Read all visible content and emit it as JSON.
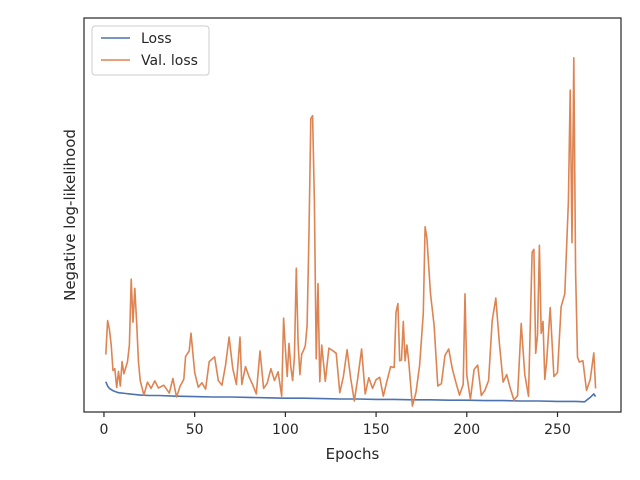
{
  "chart_data": {
    "type": "line",
    "xlabel": "Epochs",
    "ylabel": "Negative log-likelihood",
    "xlim": [
      -11,
      285
    ],
    "ylim": [
      0,
      100
    ],
    "xticks": [
      0,
      50,
      100,
      150,
      200,
      250
    ],
    "xtick_labels": [
      "0",
      "50",
      "100",
      "150",
      "200",
      "250"
    ],
    "yticks_visible": false,
    "grid": false,
    "legend_position": "top-left",
    "colors": {
      "loss": "#4c72b0",
      "val_loss": "#dd8452",
      "axes": "#262626"
    },
    "series": [
      {
        "name": "Loss",
        "key": "loss",
        "x": [
          1,
          2,
          3,
          5,
          8,
          12,
          16,
          20,
          25,
          30,
          40,
          50,
          60,
          70,
          80,
          90,
          100,
          110,
          120,
          130,
          140,
          150,
          160,
          170,
          180,
          190,
          200,
          210,
          220,
          230,
          240,
          250,
          260,
          265,
          268,
          270,
          271
        ],
        "y": [
          7.7,
          6.6,
          6.0,
          5.4,
          4.9,
          4.7,
          4.5,
          4.3,
          4.2,
          4.2,
          4.0,
          3.9,
          3.8,
          3.8,
          3.7,
          3.6,
          3.5,
          3.5,
          3.4,
          3.3,
          3.3,
          3.2,
          3.2,
          3.1,
          3.1,
          3.0,
          3.0,
          2.9,
          2.9,
          2.8,
          2.8,
          2.7,
          2.7,
          2.6,
          3.7,
          4.6,
          3.9
        ]
      },
      {
        "name": "Val. loss",
        "key": "val_loss",
        "x": [
          1,
          2,
          3,
          4,
          5,
          6,
          7,
          8,
          9,
          10,
          11,
          12,
          13,
          14,
          15,
          16,
          17,
          18,
          19,
          20,
          22,
          24,
          26,
          28,
          30,
          33,
          36,
          38,
          40,
          42,
          44,
          45,
          47,
          48,
          50,
          52,
          54,
          56,
          58,
          61,
          63,
          65,
          67,
          69,
          71,
          73,
          75,
          76,
          78,
          80,
          82,
          84,
          86,
          88,
          90,
          92,
          94,
          96,
          98,
          99,
          100,
          101,
          102,
          103,
          104,
          105,
          106,
          107,
          108,
          109,
          110,
          111,
          112,
          113,
          114,
          115,
          116,
          117,
          118,
          119,
          120,
          122,
          124,
          126,
          128,
          130,
          132,
          134,
          136,
          138,
          140,
          142,
          144,
          146,
          148,
          150,
          152,
          154,
          156,
          158,
          160,
          161,
          162,
          163,
          164,
          165,
          166,
          167,
          168,
          170,
          172,
          174,
          176,
          177,
          178,
          180,
          182,
          184,
          186,
          188,
          190,
          192,
          194,
          196,
          198,
          199,
          200,
          202,
          204,
          206,
          208,
          210,
          212,
          214,
          216,
          218,
          220,
          222,
          224,
          226,
          228,
          230,
          232,
          234,
          236,
          237,
          238,
          239,
          240,
          241,
          242,
          243,
          244,
          246,
          248,
          250,
          252,
          254,
          256,
          257,
          258,
          259,
          260,
          261,
          262,
          264,
          266,
          268,
          270,
          271
        ],
        "y": [
          14.6,
          23.2,
          21.0,
          17.0,
          10.5,
          11.0,
          6.2,
          10.3,
          6.6,
          12.8,
          9.7,
          11.2,
          12.8,
          17.0,
          33.7,
          22.8,
          31.4,
          23.0,
          13.0,
          8.0,
          4.3,
          7.6,
          6.0,
          7.9,
          6.1,
          6.8,
          4.8,
          8.5,
          3.8,
          6.6,
          8.3,
          14.1,
          15.5,
          20.0,
          10.0,
          6.3,
          7.4,
          5.8,
          12.8,
          14.0,
          8.0,
          6.8,
          11.8,
          19.0,
          11.0,
          7.0,
          19.0,
          7.0,
          11.5,
          8.9,
          6.9,
          4.6,
          15.5,
          6.0,
          7.3,
          11.0,
          8.0,
          10.2,
          4.0,
          23.8,
          16.0,
          9.0,
          17.4,
          11.5,
          8.0,
          13.8,
          36.5,
          17.5,
          9.5,
          14.7,
          15.6,
          16.8,
          22.0,
          45.6,
          74.5,
          75.2,
          53.3,
          13.5,
          32.6,
          7.7,
          17.0,
          7.8,
          16.2,
          15.6,
          14.9,
          4.9,
          9.0,
          15.8,
          8.5,
          2.8,
          8.8,
          16.0,
          4.6,
          8.7,
          6.0,
          8.2,
          8.8,
          4.0,
          7.9,
          11.5,
          11.3,
          25.3,
          27.5,
          13.0,
          13.2,
          23.0,
          13.0,
          17.0,
          12.9,
          1.5,
          5.0,
          11.8,
          25.1,
          47.0,
          44.2,
          30.0,
          22.0,
          6.6,
          7.2,
          14.4,
          16.0,
          11.0,
          7.5,
          4.3,
          7.0,
          30.0,
          9.4,
          3.2,
          10.8,
          11.9,
          4.2,
          5.5,
          8.0,
          23.2,
          28.9,
          17.4,
          7.6,
          9.5,
          6.0,
          3.0,
          4.2,
          22.5,
          9.5,
          4.0,
          40.5,
          41.3,
          14.9,
          19.5,
          42.3,
          20.0,
          23.0,
          8.3,
          12.7,
          26.5,
          9.0,
          10.0,
          26.7,
          30.0,
          53.5,
          81.7,
          43.0,
          89.9,
          35.5,
          13.9,
          12.7,
          13.0,
          5.5,
          8.2,
          15.0,
          6.0
        ]
      }
    ]
  }
}
